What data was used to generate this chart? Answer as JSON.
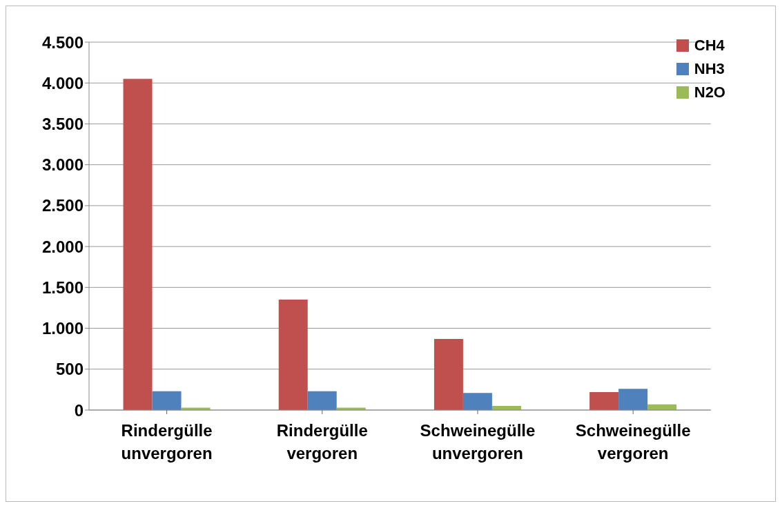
{
  "chart_data": {
    "type": "bar",
    "categories": [
      "Rindergülle unvergoren",
      "Rindergülle vergoren",
      "Schweinegülle unvergoren",
      "Schweinegülle vergoren"
    ],
    "series": [
      {
        "name": "CH4",
        "color": "#c0504d",
        "values": [
          4050,
          1350,
          870,
          220
        ]
      },
      {
        "name": "NH3",
        "color": "#4f81bd",
        "values": [
          230,
          230,
          210,
          260
        ]
      },
      {
        "name": "N2O",
        "color": "#9bbb59",
        "values": [
          30,
          30,
          50,
          70
        ]
      }
    ],
    "ylim": [
      0,
      4500
    ],
    "yticks": [
      {
        "value": 0,
        "label": "0"
      },
      {
        "value": 500,
        "label": "500"
      },
      {
        "value": 1000,
        "label": "1.000"
      },
      {
        "value": 1500,
        "label": "1.500"
      },
      {
        "value": 2000,
        "label": "2.000"
      },
      {
        "value": 2500,
        "label": "2.500"
      },
      {
        "value": 3000,
        "label": "3.000"
      },
      {
        "value": 3500,
        "label": "3.500"
      },
      {
        "value": 4000,
        "label": "4.000"
      },
      {
        "value": 4500,
        "label": "4.500"
      }
    ],
    "grid": "y",
    "legend": "top right"
  }
}
